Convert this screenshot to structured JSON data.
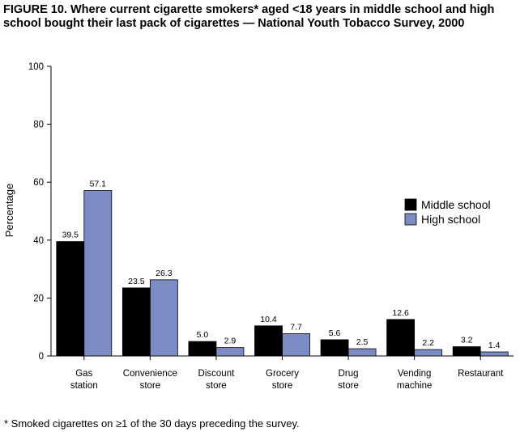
{
  "chart_data": {
    "type": "bar",
    "title": "FIGURE 10. Where current cigarette smokers* aged <18 years in middle school and high school bought their last pack of cigarettes — National Youth Tobacco Survey, 2000",
    "y_label": "Percentage",
    "categories": [
      "Gas station",
      "Convenience store",
      "Discount store",
      "Grocery store",
      "Drug store",
      "Vending machine",
      "Restaurant"
    ],
    "series": [
      {
        "name": "Middle school",
        "color": "#000000",
        "values": [
          39.5,
          23.5,
          5.0,
          10.4,
          5.6,
          12.6,
          3.2
        ],
        "value_labels": [
          "39.5",
          "23.5",
          "5.0",
          "10.4",
          "5.6",
          "12.6",
          "3.2"
        ]
      },
      {
        "name": "High school",
        "color": "#7b8cc4",
        "values": [
          57.1,
          26.3,
          2.9,
          7.7,
          2.5,
          2.2,
          1.4
        ],
        "value_labels": [
          "57.1",
          "26.3",
          "2.9",
          "7.7",
          "2.5",
          "2.2",
          "1.4"
        ]
      }
    ],
    "ylim": [
      0,
      100
    ],
    "yticks": [
      0,
      20,
      40,
      60,
      80,
      100
    ],
    "grid": false,
    "legend_position": "right",
    "footnote": "* Smoked cigarettes on ≥1 of the 30 days preceding the survey."
  }
}
